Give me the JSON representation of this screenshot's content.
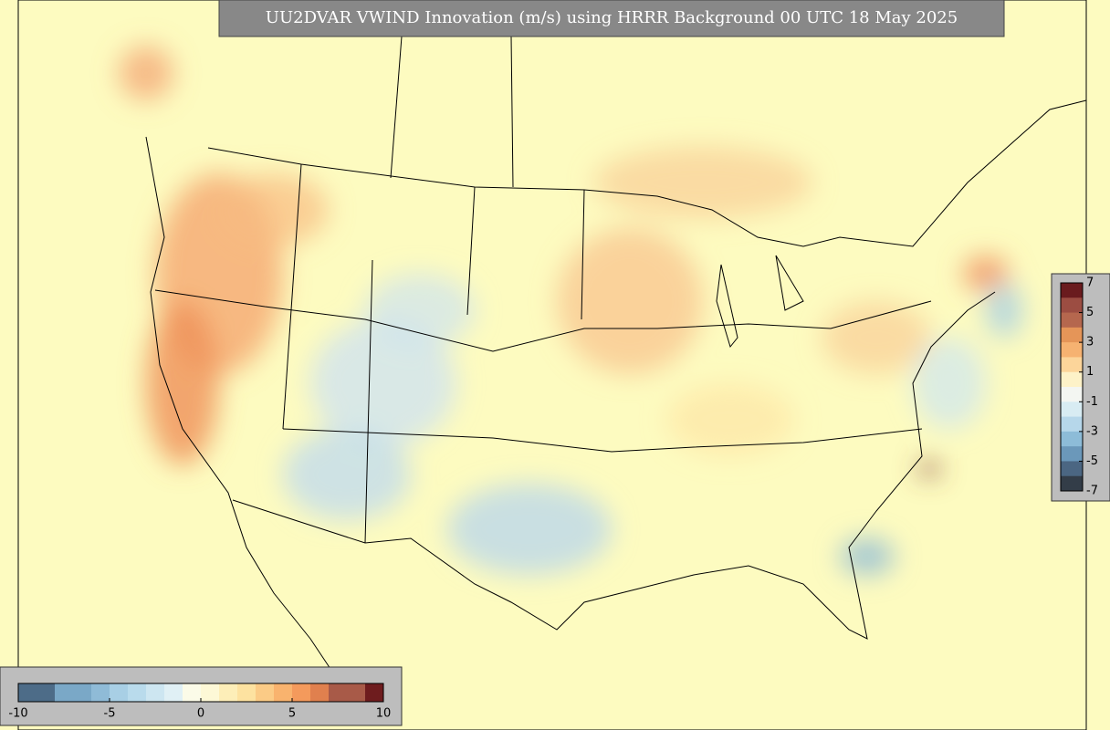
{
  "title": "UU2DVAR VWIND Innovation (m/s) using HRRR Background 00 UTC 18 May 2025",
  "colorbar_horizontal": {
    "ticks": [
      -10,
      -5,
      0,
      5,
      10
    ],
    "colors": [
      "#4d6c88",
      "#4d6c88",
      "#7aa8c7",
      "#7aa8c7",
      "#8fbbd7",
      "#a8cfe5",
      "#b9dbec",
      "#cde6f1",
      "#e0f0f5",
      "#fbfbe8",
      "#fdf8d6",
      "#fdeeb8",
      "#fde2a0",
      "#fbcb86",
      "#f9b36e",
      "#f49a5c",
      "#e0804e",
      "#a85a48",
      "#a85a48",
      "#6e1c1e"
    ]
  },
  "colorbar_vertical": {
    "ticks": [
      7,
      5,
      3,
      1,
      -1,
      -3,
      -5,
      -7
    ],
    "colors": [
      "#6a1b1e",
      "#9c4d42",
      "#b5674e",
      "#e59558",
      "#f6b271",
      "#fcd59a",
      "#fdf2c8",
      "#f4f6f2",
      "#d8ecf3",
      "#b6d7ea",
      "#8dbcd8",
      "#6b98ba",
      "#4b6682",
      "#333d48"
    ]
  }
}
